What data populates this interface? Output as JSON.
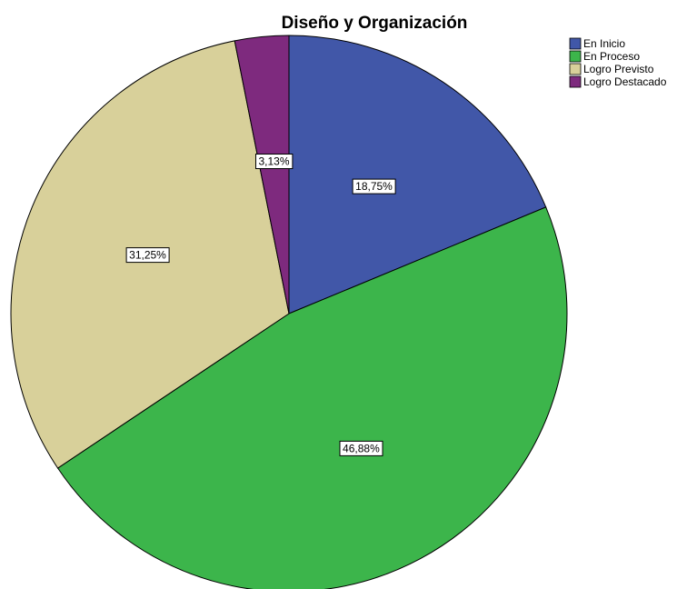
{
  "chart_data": {
    "type": "pie",
    "title": "Diseño y Organización",
    "legend_position": "top-right",
    "start_angle_deg": 0,
    "direction": "clockwise",
    "slices": [
      {
        "label": "En Inicio",
        "value": 18.75,
        "value_label": "18,75%",
        "color": "#4157a8"
      },
      {
        "label": "En Proceso",
        "value": 46.88,
        "value_label": "46,88%",
        "color": "#3cb54b"
      },
      {
        "label": "Logro Previsto",
        "value": 31.25,
        "value_label": "31,25%",
        "color": "#d8d09a"
      },
      {
        "label": "Logro Destacado",
        "value": 3.13,
        "value_label": "3,13%",
        "color": "#7e2a7e"
      }
    ]
  }
}
